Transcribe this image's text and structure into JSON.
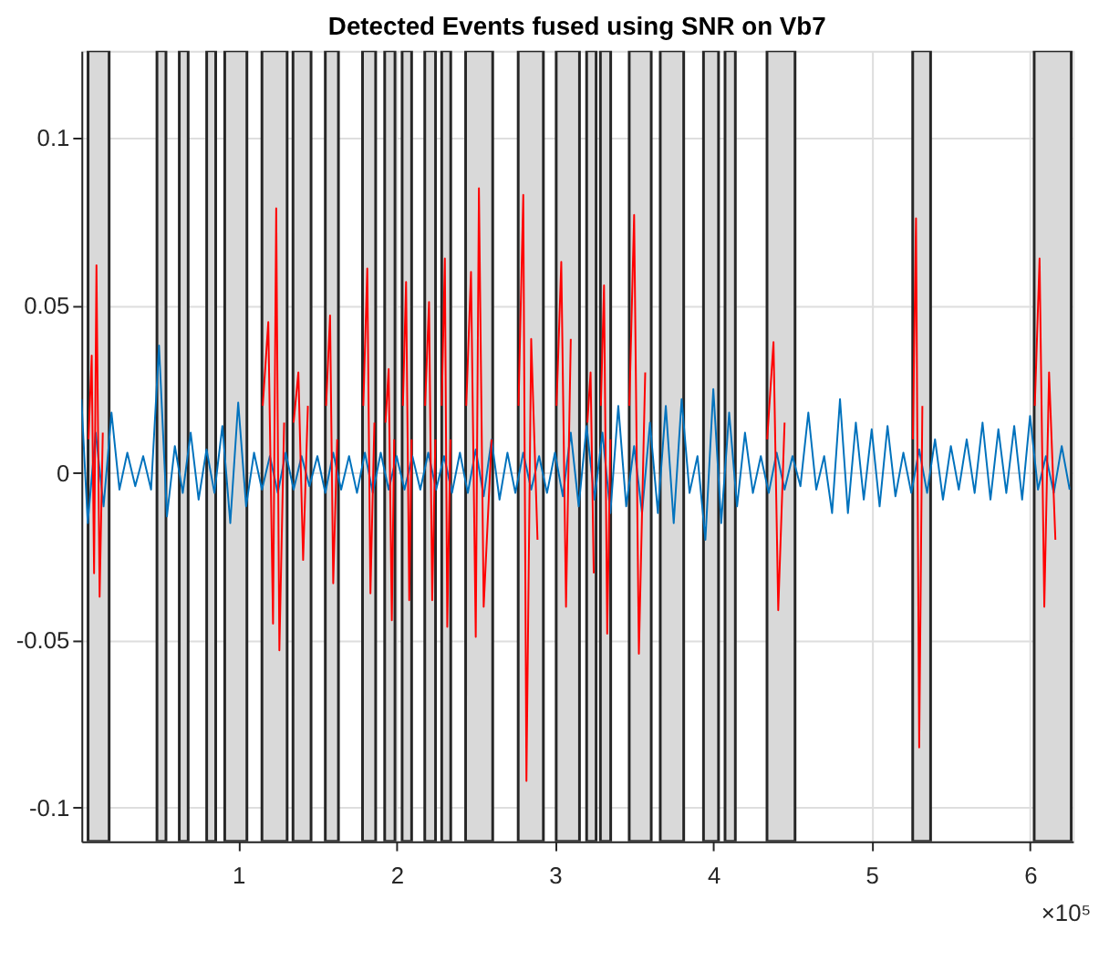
{
  "chart_data": {
    "type": "line",
    "title": "Detected Events fused using SNR on Vb7",
    "x": [
      0.01,
      0.05,
      0.1,
      0.15,
      0.2,
      0.25,
      0.3,
      0.35,
      0.4,
      0.45,
      0.5,
      0.55,
      0.6,
      0.65,
      0.7,
      0.75,
      0.8,
      0.85,
      0.9,
      0.95,
      1.0,
      1.05,
      1.1,
      1.15,
      1.2,
      1.25,
      1.3,
      1.35,
      1.4,
      1.45,
      1.5,
      1.55,
      1.6,
      1.65,
      1.7,
      1.75,
      1.8,
      1.85,
      1.9,
      1.95,
      2.0,
      2.05,
      2.1,
      2.15,
      2.2,
      2.25,
      2.3,
      2.35,
      2.4,
      2.45,
      2.5,
      2.55,
      2.6,
      2.65,
      2.7,
      2.75,
      2.8,
      2.85,
      2.9,
      2.95,
      3.0,
      3.05,
      3.1,
      3.15,
      3.2,
      3.25,
      3.3,
      3.35,
      3.4,
      3.45,
      3.5,
      3.55,
      3.6,
      3.65,
      3.7,
      3.75,
      3.8,
      3.85,
      3.9,
      3.95,
      4.0,
      4.05,
      4.1,
      4.15,
      4.2,
      4.25,
      4.3,
      4.35,
      4.4,
      4.45,
      4.5,
      4.55,
      4.6,
      4.65,
      4.7,
      4.75,
      4.8,
      4.85,
      4.9,
      4.95,
      5.0,
      5.05,
      5.1,
      5.15,
      5.2,
      5.25,
      5.3,
      5.35,
      5.4,
      5.45,
      5.5,
      5.55,
      5.6,
      5.65,
      5.7,
      5.75,
      5.8,
      5.85,
      5.9,
      5.95,
      6.0,
      6.05,
      6.1,
      6.15,
      6.2,
      6.25
    ],
    "series": [
      {
        "color": "#0072bd",
        "values": [
          0.022,
          -0.015,
          0.012,
          -0.01,
          0.018,
          -0.005,
          0.006,
          -0.004,
          0.005,
          -0.005,
          0.038,
          -0.013,
          0.008,
          -0.006,
          0.012,
          -0.008,
          0.007,
          -0.006,
          0.014,
          -0.015,
          0.021,
          -0.01,
          0.006,
          -0.005,
          0.005,
          -0.006,
          0.006,
          -0.005,
          0.005,
          -0.004,
          0.005,
          -0.006,
          0.006,
          -0.005,
          0.005,
          -0.006,
          0.006,
          -0.006,
          0.006,
          -0.005,
          0.005,
          -0.005,
          0.005,
          -0.005,
          0.006,
          -0.005,
          0.005,
          -0.006,
          0.006,
          -0.006,
          0.007,
          -0.007,
          0.01,
          -0.008,
          0.006,
          -0.006,
          0.006,
          -0.005,
          0.005,
          -0.006,
          0.006,
          -0.007,
          0.012,
          -0.01,
          0.014,
          -0.008,
          0.012,
          -0.012,
          0.02,
          -0.01,
          0.008,
          -0.012,
          0.015,
          -0.012,
          0.02,
          -0.015,
          0.022,
          -0.006,
          0.005,
          -0.02,
          0.025,
          -0.015,
          0.018,
          -0.01,
          0.012,
          -0.006,
          0.005,
          -0.006,
          0.006,
          -0.005,
          0.005,
          -0.004,
          0.018,
          -0.005,
          0.005,
          -0.012,
          0.022,
          -0.012,
          0.015,
          -0.008,
          0.013,
          -0.01,
          0.014,
          -0.007,
          0.006,
          -0.006,
          0.007,
          -0.006,
          0.01,
          -0.008,
          0.008,
          -0.005,
          0.01,
          -0.006,
          0.015,
          -0.008,
          0.013,
          -0.006,
          0.014,
          -0.008,
          0.017,
          -0.005,
          0.005,
          -0.006,
          0.008,
          -0.005
        ]
      },
      {
        "color": "#ff0000",
        "x": [
          0.055,
          0.075,
          0.09,
          0.105,
          0.125,
          0.145,
          0.16,
          1.155,
          1.19,
          1.22,
          1.24,
          1.26,
          1.29,
          1.31,
          1.35,
          1.38,
          1.41,
          1.44,
          1.47,
          1.555,
          1.58,
          1.6,
          1.625,
          1.64,
          1.79,
          1.815,
          1.835,
          1.86,
          1.875,
          1.93,
          1.95,
          1.97,
          1.985,
          1.995,
          2.04,
          2.06,
          2.08,
          2.095,
          2.105,
          2.18,
          2.205,
          2.225,
          2.245,
          2.255,
          2.285,
          2.305,
          2.32,
          2.34,
          2.35,
          2.44,
          2.47,
          2.5,
          2.52,
          2.55,
          2.6,
          2.615,
          2.77,
          2.8,
          2.82,
          2.85,
          2.89,
          2.925,
          3.01,
          3.04,
          3.07,
          3.1,
          3.15,
          3.205,
          3.225,
          3.245,
          3.26,
          3.29,
          3.31,
          3.33,
          3.35,
          3.36,
          3.47,
          3.5,
          3.53,
          3.57,
          3.61,
          4.34,
          4.38,
          4.41,
          4.45,
          4.52,
          5.26,
          5.28,
          5.3,
          5.32,
          5.37,
          6.03,
          6.06,
          6.09,
          6.12,
          6.16
        ],
        "values": [
          0.01,
          0.035,
          -0.03,
          0.062,
          -0.037,
          0.012,
          null,
          0.02,
          0.045,
          -0.045,
          0.079,
          -0.053,
          0.015,
          null,
          0.015,
          0.03,
          -0.026,
          0.02,
          null,
          0.02,
          0.047,
          -0.033,
          0.01,
          null,
          0.02,
          0.061,
          -0.036,
          0.015,
          null,
          0.015,
          0.031,
          -0.044,
          0.01,
          null,
          0.02,
          0.057,
          -0.038,
          0.01,
          null,
          0.02,
          0.051,
          -0.038,
          0.01,
          null,
          0.02,
          0.064,
          -0.046,
          0.01,
          null,
          0.02,
          0.06,
          -0.049,
          0.085,
          -0.04,
          0.01,
          null,
          0.02,
          0.083,
          -0.092,
          0.04,
          -0.02,
          null,
          0.02,
          0.063,
          -0.04,
          0.04,
          null,
          0.015,
          0.03,
          -0.03,
          null,
          0.02,
          0.056,
          -0.048,
          0.01,
          null,
          0.02,
          0.077,
          -0.054,
          0.03,
          null,
          0.01,
          0.039,
          -0.041,
          0.015,
          null,
          0.01,
          0.076,
          -0.082,
          0.02,
          null,
          0.02,
          0.064,
          -0.04,
          0.03,
          -0.02
        ]
      }
    ],
    "bands": [
      {
        "axis": "x",
        "from": 0.052,
        "to": 0.185,
        "color": "#d9d9d9"
      },
      {
        "axis": "x",
        "from": 0.487,
        "to": 0.544,
        "color": "#d9d9d9"
      },
      {
        "axis": "x",
        "from": 0.628,
        "to": 0.684,
        "color": "#d9d9d9"
      },
      {
        "axis": "x",
        "from": 0.801,
        "to": 0.858,
        "color": "#d9d9d9"
      },
      {
        "axis": "x",
        "from": 0.915,
        "to": 1.055,
        "color": "#d9d9d9"
      },
      {
        "axis": "x",
        "from": 1.15,
        "to": 1.309,
        "color": "#d9d9d9"
      },
      {
        "axis": "x",
        "from": 1.346,
        "to": 1.46,
        "color": "#d9d9d9"
      },
      {
        "axis": "x",
        "from": 1.55,
        "to": 1.633,
        "color": "#d9d9d9"
      },
      {
        "axis": "x",
        "from": 1.785,
        "to": 1.868,
        "color": "#d9d9d9"
      },
      {
        "axis": "x",
        "from": 1.925,
        "to": 1.99,
        "color": "#d9d9d9"
      },
      {
        "axis": "x",
        "from": 2.035,
        "to": 2.095,
        "color": "#d9d9d9"
      },
      {
        "axis": "x",
        "from": 2.178,
        "to": 2.246,
        "color": "#d9d9d9"
      },
      {
        "axis": "x",
        "from": 2.285,
        "to": 2.342,
        "color": "#d9d9d9"
      },
      {
        "axis": "x",
        "from": 2.436,
        "to": 2.607,
        "color": "#d9d9d9"
      },
      {
        "axis": "x",
        "from": 2.768,
        "to": 2.927,
        "color": "#d9d9d9"
      },
      {
        "axis": "x",
        "from": 3.008,
        "to": 3.155,
        "color": "#d9d9d9"
      },
      {
        "axis": "x",
        "from": 3.2,
        "to": 3.26,
        "color": "#d9d9d9"
      },
      {
        "axis": "x",
        "from": 3.287,
        "to": 3.352,
        "color": "#d9d9d9"
      },
      {
        "axis": "x",
        "from": 3.469,
        "to": 3.608,
        "color": "#d9d9d9"
      },
      {
        "axis": "x",
        "from": 3.665,
        "to": 3.813,
        "color": "#d9d9d9"
      },
      {
        "axis": "x",
        "from": 3.938,
        "to": 4.033,
        "color": "#d9d9d9"
      },
      {
        "axis": "x",
        "from": 4.074,
        "to": 4.139,
        "color": "#d9d9d9"
      },
      {
        "axis": "x",
        "from": 4.339,
        "to": 4.516,
        "color": "#d9d9d9"
      },
      {
        "axis": "x",
        "from": 5.259,
        "to": 5.372,
        "color": "#d9d9d9"
      },
      {
        "axis": "x",
        "from": 6.026,
        "to": 6.26,
        "color": "#d9d9d9"
      }
    ],
    "xlim": [
      0.01,
      6.27
    ],
    "xticks": [
      1,
      2,
      3,
      4,
      5,
      6
    ],
    "ylim": [
      -0.11,
      0.126
    ],
    "yticks": [
      -0.1,
      -0.05,
      0,
      0.05,
      0.1
    ],
    "annotations": [
      "×10⁵"
    ],
    "grid": true,
    "marker": "none",
    "line_style": "solid"
  }
}
